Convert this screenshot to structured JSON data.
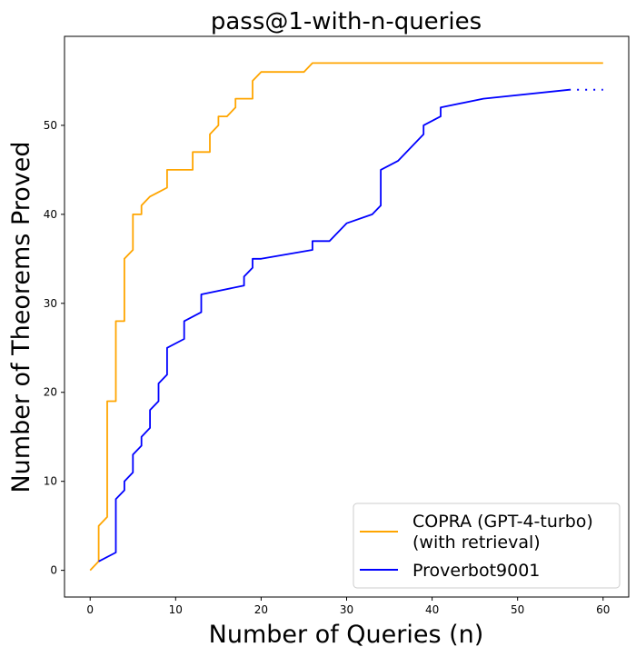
{
  "chart_data": {
    "type": "line",
    "title": "pass@1-with-n-queries",
    "xlabel": "Number of Queries (n)",
    "ylabel": "Number of Theorems Proved",
    "xlim": [
      -3,
      63
    ],
    "ylim": [
      -3,
      60
    ],
    "xticks": [
      0,
      10,
      20,
      30,
      40,
      50,
      60
    ],
    "yticks": [
      0,
      10,
      20,
      30,
      40,
      50
    ],
    "grid": false,
    "legend_position": "lower-right",
    "series": [
      {
        "name": "COPRA (GPT-4-turbo)",
        "name_line2": "(with retrieval)",
        "color": "#ffa500",
        "x": [
          0,
          1,
          1,
          2,
          2,
          3,
          3,
          4,
          4,
          5,
          5,
          6,
          6,
          7,
          8,
          9,
          9,
          12,
          12,
          14,
          14,
          15,
          15,
          16,
          17,
          17,
          19,
          19,
          20,
          25,
          26,
          60
        ],
        "y": [
          0,
          1,
          5,
          6,
          19,
          19,
          28,
          28,
          35,
          36,
          40,
          40,
          41,
          42,
          42.5,
          43,
          45,
          45,
          47,
          47,
          49,
          50,
          51,
          51,
          52,
          53,
          53,
          55,
          56,
          56,
          57,
          57
        ]
      },
      {
        "name": "Proverbot9001",
        "color": "#0000ff",
        "x": [
          1,
          3,
          3,
          4,
          4,
          5,
          5,
          6,
          6,
          7,
          7,
          8,
          8,
          9,
          9,
          11,
          11,
          13,
          13,
          18,
          18,
          19,
          19,
          20,
          26,
          26,
          28,
          30,
          33,
          34,
          34,
          36,
          39,
          39,
          41,
          41,
          46,
          56
        ],
        "y": [
          1,
          2,
          8,
          9,
          10,
          11,
          13,
          14,
          15,
          16,
          18,
          19,
          21,
          22,
          25,
          26,
          28,
          29,
          31,
          32,
          33,
          34,
          35,
          35,
          36,
          37,
          37,
          39,
          40,
          41,
          45,
          46,
          49,
          50,
          51,
          52,
          53,
          54
        ],
        "dotted_extension": {
          "x": [
            56,
            60
          ],
          "y": [
            54,
            54
          ]
        }
      }
    ]
  }
}
